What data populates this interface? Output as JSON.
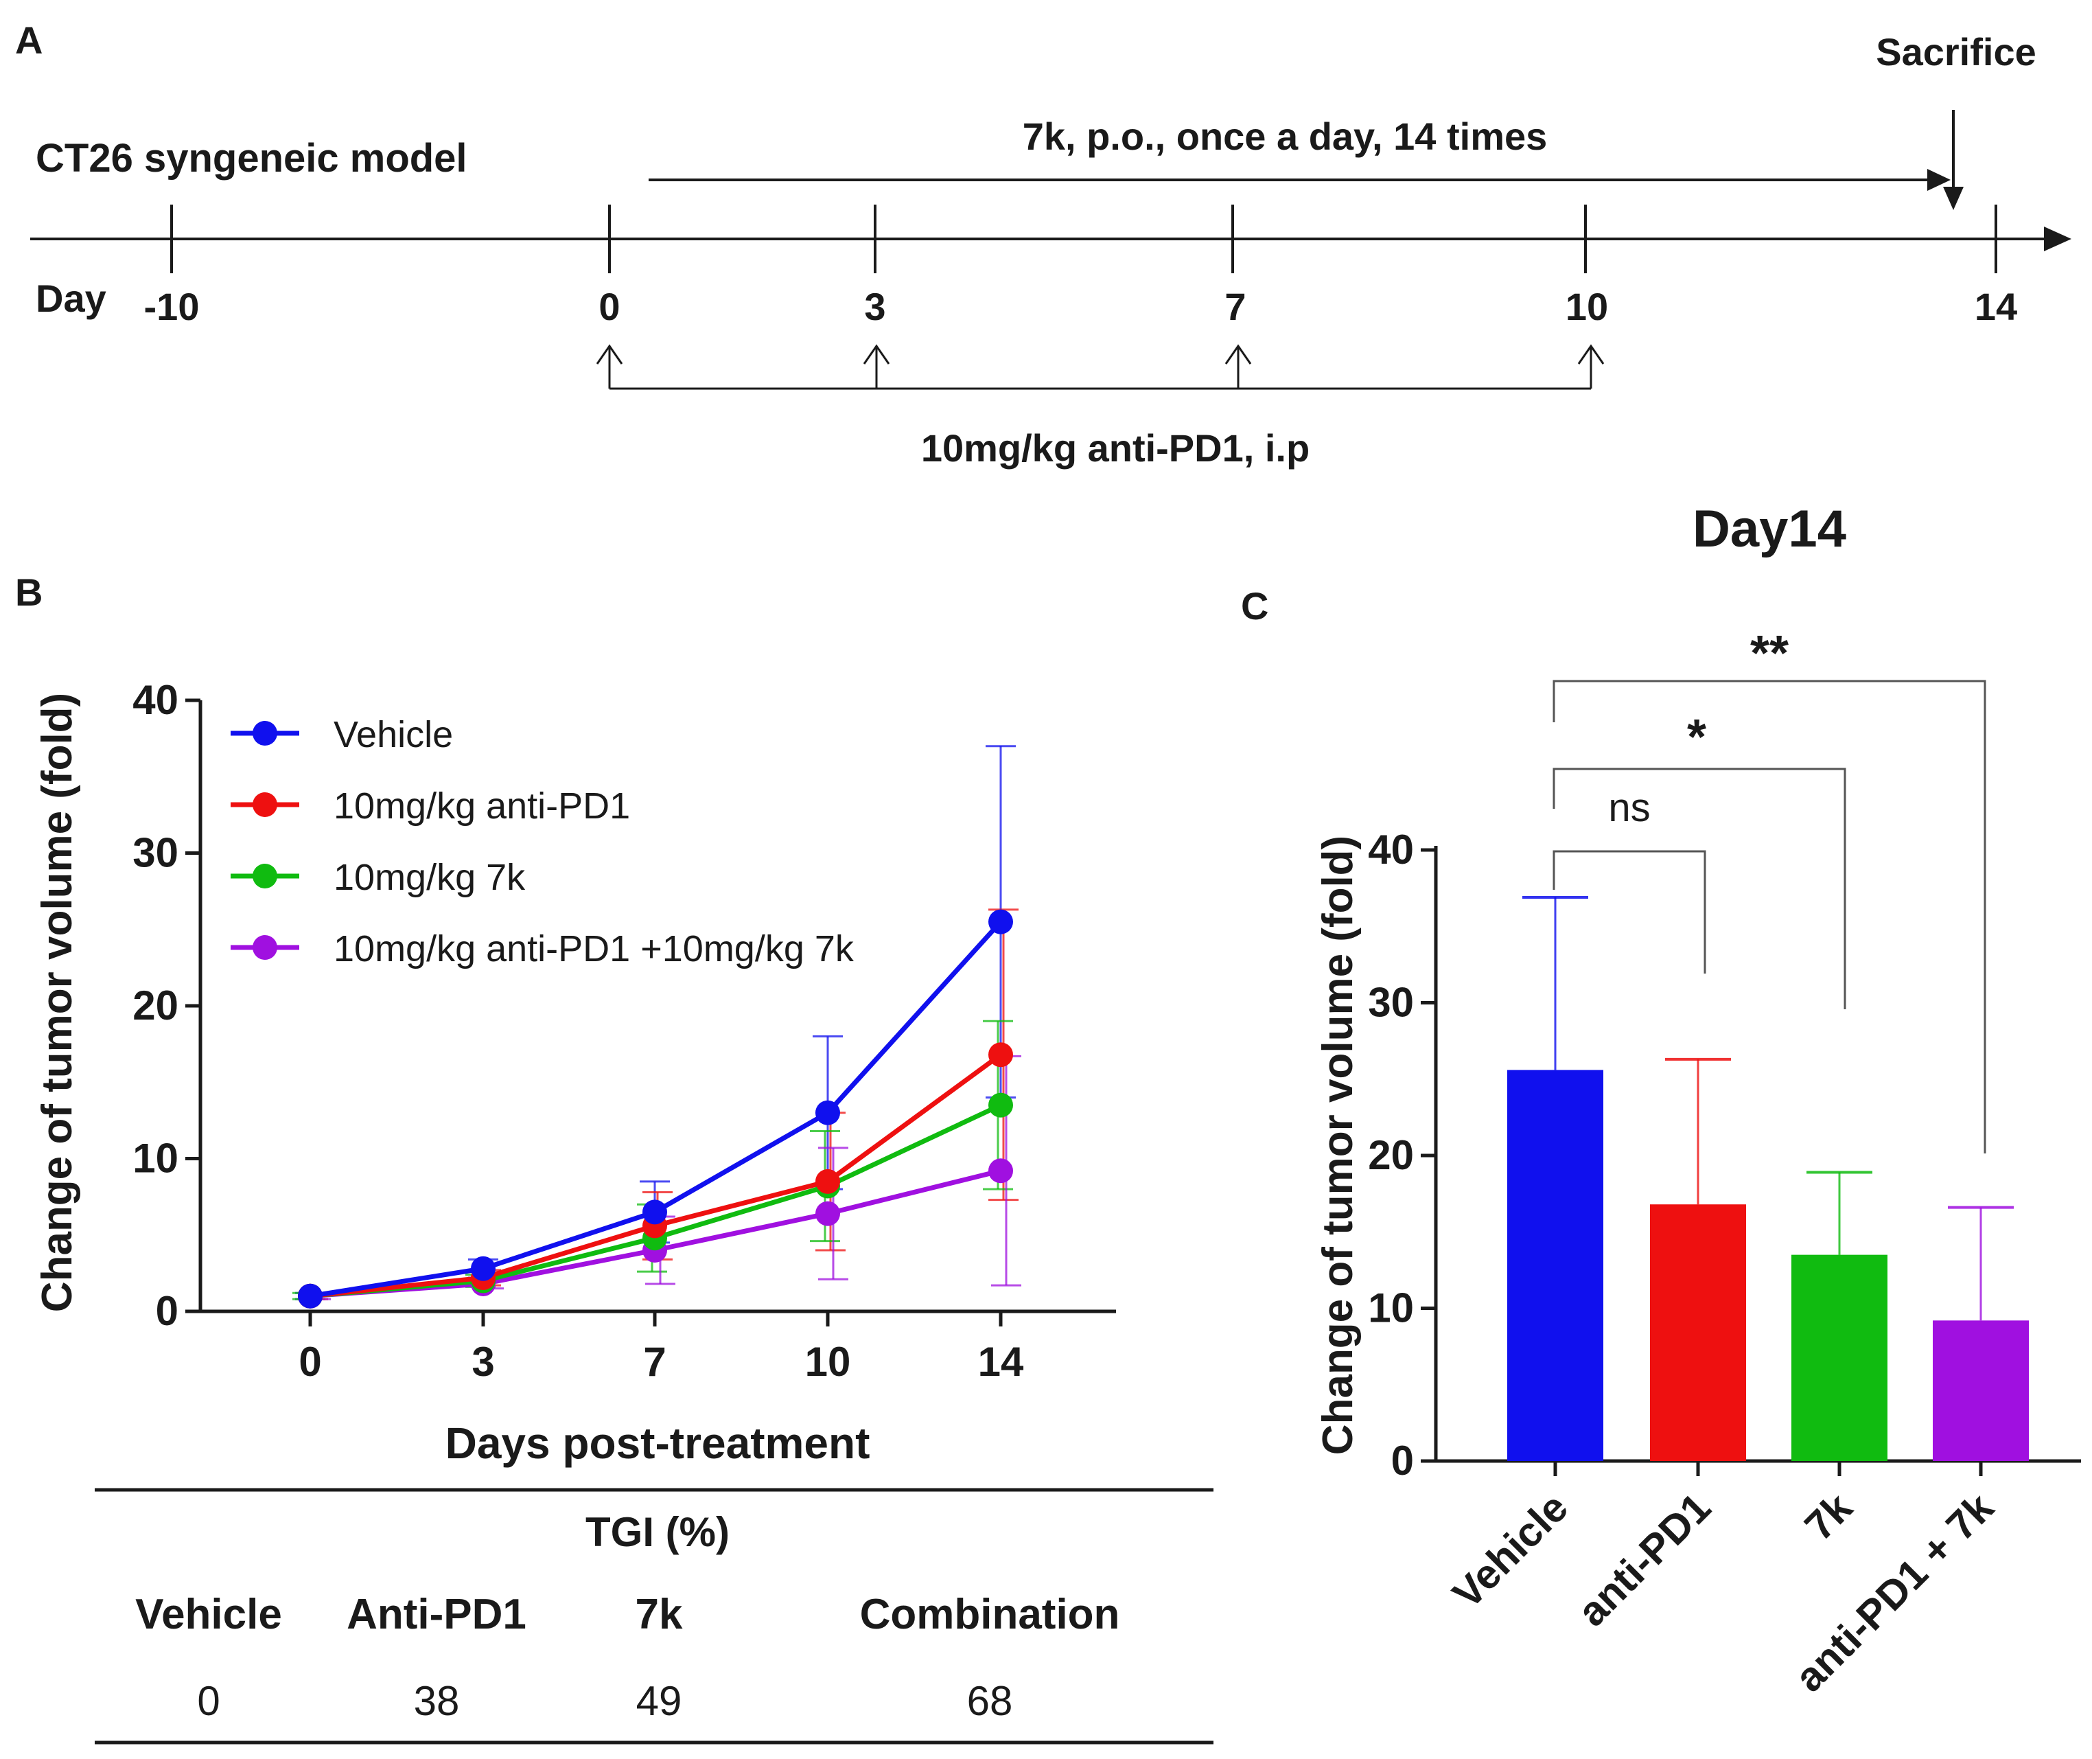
{
  "panelA": {
    "label": "A",
    "model": "CT26 syngeneic model",
    "sacrifice": "Sacrifice",
    "treatment_7k": "7k, p.o.,  once a day, 14 times",
    "day_label": "Day",
    "days": [
      "-10",
      "0",
      "3",
      "7",
      "10",
      "14"
    ],
    "antipd1": "10mg/kg anti-PD1, i.p"
  },
  "panelB": {
    "label": "B",
    "tgi_title": "TGI (%)",
    "tgi_headers": [
      "Vehicle",
      "Anti-PD1",
      "7k",
      "Combination"
    ],
    "tgi_values": [
      "0",
      "38",
      "49",
      "68"
    ]
  },
  "panelC": {
    "label": "C",
    "sig_labels": [
      "ns",
      "*",
      "**"
    ]
  },
  "colors": {
    "vehicle": "#1010ee",
    "antipd1": "#ee1010",
    "k7": "#10bb10",
    "combo": "#a010e0"
  },
  "chart_data": [
    {
      "type": "line",
      "title": "",
      "xlabel": "Days post-treatment",
      "ylabel": "Change of tumor volume (fold)",
      "x": [
        0,
        3,
        7,
        10,
        14
      ],
      "x_ticks": [
        "0",
        "3",
        "7",
        "10",
        "14"
      ],
      "y_ticks": [
        "0",
        "10",
        "20",
        "30",
        "40"
      ],
      "ylim": [
        0,
        40
      ],
      "legend_position": "top-left",
      "series": [
        {
          "name": "Vehicle",
          "color": "#1010ee",
          "values": [
            1.0,
            2.8,
            6.5,
            13.0,
            25.5
          ],
          "errors": [
            0.2,
            0.6,
            2.0,
            5.0,
            11.5
          ]
        },
        {
          "name": "10mg/kg anti-PD1",
          "color": "#ee1010",
          "values": [
            1.0,
            2.2,
            5.6,
            8.5,
            16.8
          ],
          "errors": [
            0.2,
            0.5,
            2.2,
            4.5,
            9.5
          ]
        },
        {
          "name": "10mg/kg 7k",
          "color": "#10bb10",
          "values": [
            1.0,
            2.0,
            4.8,
            8.2,
            13.5
          ],
          "errors": [
            0.2,
            0.4,
            2.2,
            3.6,
            5.5
          ]
        },
        {
          "name": "10mg/kg anti-PD1 +10mg/kg 7k",
          "color": "#a010e0",
          "values": [
            1.0,
            1.8,
            4.0,
            6.4,
            9.2
          ],
          "errors": [
            0.2,
            0.3,
            2.2,
            4.3,
            7.5
          ]
        }
      ]
    },
    {
      "type": "bar",
      "title": "Day14",
      "xlabel": "",
      "ylabel": "Change of tumor volume (fold)",
      "categories": [
        "Vehicle",
        "anti-PD1",
        "7k",
        "anti-PD1 + 7k"
      ],
      "values": [
        25.6,
        16.8,
        13.5,
        9.2
      ],
      "errors": [
        11.3,
        9.5,
        5.4,
        7.4
      ],
      "colors": [
        "#1010ee",
        "#ee1010",
        "#10bb10",
        "#a010e0"
      ],
      "y_ticks": [
        "0",
        "10",
        "20",
        "30",
        "40"
      ],
      "ylim": [
        0,
        40
      ],
      "significance": [
        {
          "pair": [
            "Vehicle",
            "anti-PD1"
          ],
          "label": "ns"
        },
        {
          "pair": [
            "Vehicle",
            "7k"
          ],
          "label": "*"
        },
        {
          "pair": [
            "Vehicle",
            "anti-PD1 + 7k"
          ],
          "label": "**"
        }
      ]
    }
  ]
}
